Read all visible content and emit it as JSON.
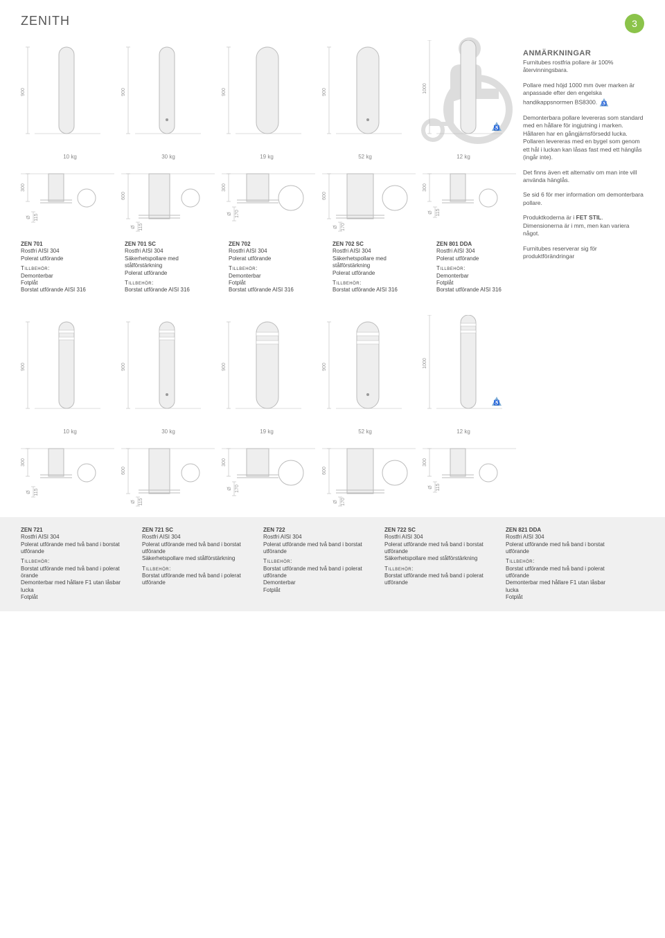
{
  "page_number": "3",
  "title": "ZENITH",
  "notes": {
    "heading": "ANMÄRKNINGAR",
    "p1": "Furnitubes rostfria pollare är 100% återvinningsbara.",
    "p2": "Pollare med höjd 1000 mm över marken är anpassade efter den engelska handikappsnormen BS8300.",
    "p3": "Demonterbara pollare levereras som standard med en hållare för ingjutning i marken. Hållaren har en gångjärnsförsedd lucka. Pollaren levereras med en bygel som genom ett hål i luckan kan låsas fast med ett hänglås (ingår inte).",
    "p4": "Det finns även ett alternativ om man inte vill använda hänglås.",
    "p5a": "Se sid 6 för mer information om demonterbara pollare.",
    "p5b_prefix": "Produktkoderna är i ",
    "p5b_bold": "FET STIL",
    "p5b_suffix": ". Dimensionerna är i mm, men kan variera något.",
    "p6": "Furnitubes reserverar sig för produktförändringar"
  },
  "top_weights": [
    "10 kg",
    "30 kg",
    "19 kg",
    "52 kg",
    "12 kg"
  ],
  "bottom_weights": [
    "10 kg",
    "30 kg",
    "19 kg",
    "52 kg",
    "12 kg"
  ],
  "dims": {
    "h900": "900",
    "h1000": "1000",
    "d300": "300",
    "d600": "600",
    "o115": "115",
    "o170": "170"
  },
  "top_specs": [
    {
      "code": "ZEN 701",
      "mat": "Rostfri AISI 304",
      "fin": "Polerat utförande",
      "tlabel": "Tillbehör:",
      "acc": "Demonterbar\nFotplåt\nBorstat utförande AISI 316"
    },
    {
      "code": "ZEN 701 SC",
      "mat": "Rostfri AISI 304",
      "fin": "Säkerhetspollare med stålförstärkning\nPolerat utförande",
      "tlabel": "Tillbehör:",
      "acc": "Borstat utförande AISI 316"
    },
    {
      "code": "ZEN 702",
      "mat": "Rostfri AISI 304",
      "fin": "Polerat utförande",
      "tlabel": "Tillbehör:",
      "acc": "Demonterbar\nFotplåt\nBorstat utförande AISI 316"
    },
    {
      "code": "ZEN 702 SC",
      "mat": "Rostfri AISI 304",
      "fin": "Säkerhetspollare med stålförstärkning\nPolerat utförande",
      "tlabel": "Tillbehör:",
      "acc": "Borstat utförande AISI 316"
    },
    {
      "code": "ZEN 801 DDA",
      "mat": "Rostfri AISI 304",
      "fin": "Polerat utförande",
      "tlabel": "Tillbehör:",
      "acc": "Demonterbar\nFotplåt\nBorstat utförande AISI 316"
    }
  ],
  "bottom_specs": [
    {
      "code": "ZEN 721",
      "mat": "Rostfri AISI 304",
      "fin": "Polerat utförande med två band i borstat utförande",
      "tlabel": "Tillbehör:",
      "acc": "Borstat utförande med två band i polerat örande\nDemonterbar med hållare F1 utan låsbar lucka\nFotplåt"
    },
    {
      "code": "ZEN 721 SC",
      "mat": "Rostfri AISI 304",
      "fin": "Polerat utförande med två band i borstat utförande\nSäkerhetspollare med stålförstärkning",
      "tlabel": "Tillbehör:",
      "acc": "Borstat utförande med två band i polerat utförande"
    },
    {
      "code": "ZEN 722",
      "mat": "Rostfri AISI 304",
      "fin": "Polerat utförande med två band i borstat utförande",
      "tlabel": "Tillbehör:",
      "acc": "Borstat utförande med två band i polerat utförande\nDemonterbar\nFotplåt"
    },
    {
      "code": "ZEN 722 SC",
      "mat": "Rostfri AISI 304",
      "fin": "Polerat utförande med två band i borstat utförande\nSäkerhetspollare med stålförstärkning",
      "tlabel": "Tillbehör:",
      "acc": "Borstat utförande med två band i polerat utförande"
    },
    {
      "code": "ZEN 821 DDA",
      "mat": "Rostfri AISI 304",
      "fin": "Polerat utförande med två band i borstat utförande",
      "tlabel": "Tillbehör:",
      "acc": "Borstat utförande med två band i polerat utförande\nDemonterbar med hållare F1 utan låsbar lucka\nFotplåt"
    }
  ],
  "colors": {
    "accent": "#8bc34a",
    "bollard_fill": "#eeeeee",
    "bollard_stroke": "#bbbbbb",
    "silhouette": "#dddddd",
    "dim": "#bbbbbb"
  }
}
